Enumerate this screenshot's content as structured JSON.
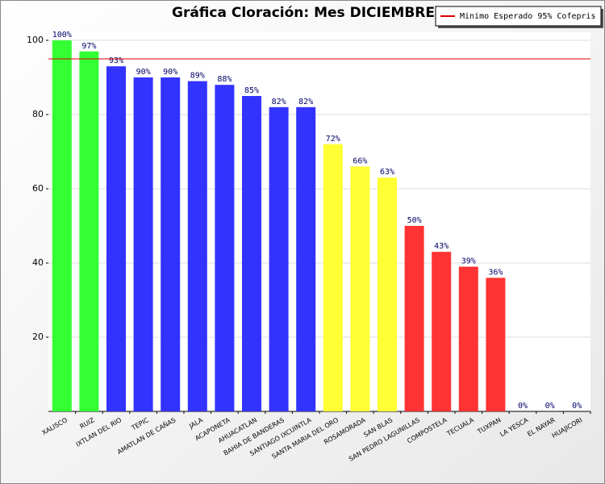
{
  "chart_data": {
    "type": "bar",
    "title": "Gráfica Cloración: Mes DICIEMBRE",
    "categories": [
      "XALISCO",
      "RUIZ",
      "IXTLAN DEL RIO",
      "TEPIC",
      "AMATLAN DE CAÑAS",
      "JALA",
      "ACAPONETA",
      "AHUACATLAN",
      "BAHIA DE BANDERAS",
      "SANTIAGO IXCUINTLA",
      "SANTA MARIA DEL ORO",
      "ROSAMORADA",
      "SAN BLAS",
      "SAN PEDRO LAGUNILLAS",
      "COMPOSTELA",
      "TECUALA",
      "TUXPAN",
      "LA YESCA",
      "EL NAYAR",
      "HUAJICORI"
    ],
    "values": [
      100,
      97,
      93,
      90,
      90,
      89,
      88,
      85,
      82,
      82,
      72,
      66,
      63,
      50,
      43,
      39,
      36,
      0,
      0,
      0
    ],
    "value_labels": [
      "100%",
      "97%",
      "93%",
      "90%",
      "90%",
      "89%",
      "88%",
      "85%",
      "82%",
      "82%",
      "72%",
      "66%",
      "63%",
      "50%",
      "43%",
      "39%",
      "36%",
      "0%",
      "0%",
      "0%"
    ],
    "colors": [
      "#33ff33",
      "#33ff33",
      "#3333ff",
      "#3333ff",
      "#3333ff",
      "#3333ff",
      "#3333ff",
      "#3333ff",
      "#3333ff",
      "#3333ff",
      "#ffff33",
      "#ffff33",
      "#ffff33",
      "#ff3333",
      "#ff3333",
      "#ff3333",
      "#ff3333",
      "#ff3333",
      "#ff3333",
      "#ff3333"
    ],
    "ylim": [
      0,
      100
    ],
    "yticks": [
      20,
      40,
      60,
      80,
      100
    ],
    "grid": true,
    "reference_line": {
      "value": 95,
      "label": "Minimo Esperado 95% Cofepris",
      "color": "#dd0000"
    },
    "legend": "top-right"
  }
}
